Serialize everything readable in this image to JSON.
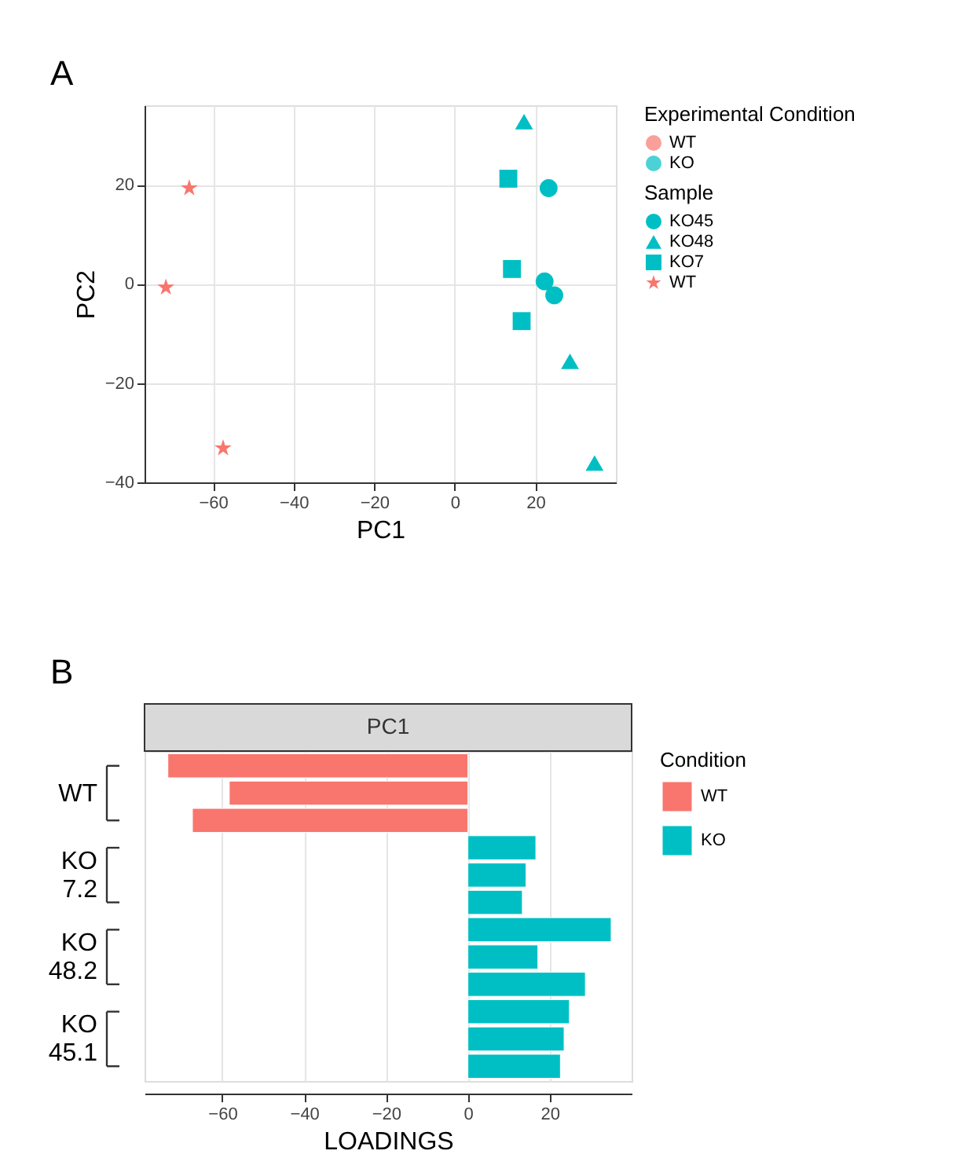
{
  "chart_data": [
    {
      "type": "scatter",
      "xlabel": "PC1",
      "ylabel": "PC2",
      "legend_title": [
        "Experimental Condition",
        "Sample"
      ],
      "annotations": [
        "A",
        "WT",
        "KO"
      ],
      "xlim": [
        -77,
        40
      ],
      "ylim": [
        -40,
        36
      ],
      "xticks": [
        -60,
        -40,
        -20,
        0,
        20
      ],
      "yticks": [
        -40,
        -20,
        0,
        20
      ],
      "grid": true,
      "legend": "right",
      "series": [
        {
          "name": "WT",
          "color": "#f8766d",
          "marker": "star",
          "x": [
            -65.9,
            -71.7,
            -57.5
          ],
          "values": [
            19.3,
            -0.7,
            -33.1
          ]
        },
        {
          "name": "KO45",
          "color": "#00bfc4",
          "marker": "circle",
          "x": [
            23.3,
            22.3,
            24.7
          ],
          "values": [
            19.3,
            0.5,
            -2.3
          ]
        },
        {
          "name": "KO48",
          "color": "#00bfc4",
          "marker": "triangle",
          "x": [
            17.2,
            28.6,
            34.7
          ],
          "values": [
            32.7,
            -15.6,
            -36.1
          ]
        },
        {
          "name": "KO7",
          "color": "#00bfc4",
          "marker": "square",
          "x": [
            13.3,
            14.2,
            16.6
          ],
          "values": [
            21.2,
            3.0,
            -7.5
          ]
        }
      ]
    },
    {
      "type": "bar",
      "orientation": "horizontal",
      "title": "PC1",
      "xlabel": "LOADINGS",
      "legend_title": "Condition",
      "annotations": [
        "B"
      ],
      "xlim": [
        -79,
        40
      ],
      "xticks": [
        -60,
        -40,
        -20,
        0,
        20
      ],
      "grid": true,
      "legend": "right",
      "categories": [
        null,
        "WT",
        null,
        null,
        "KO 7.2",
        null,
        null,
        "KO 48.2",
        null,
        null,
        "KO 45.1",
        null
      ],
      "series": [
        {
          "name": "WT",
          "color": "#f8766d",
          "values": [
            -73.3,
            -58.3,
            -67.3,
            null,
            null,
            null,
            null,
            null,
            null,
            null,
            null,
            null
          ]
        },
        {
          "name": "KO",
          "color": "#00bfc4",
          "values": [
            null,
            null,
            null,
            16.6,
            14.2,
            13.3,
            35.0,
            17.1,
            28.7,
            24.8,
            23.5,
            22.6
          ]
        }
      ]
    }
  ]
}
